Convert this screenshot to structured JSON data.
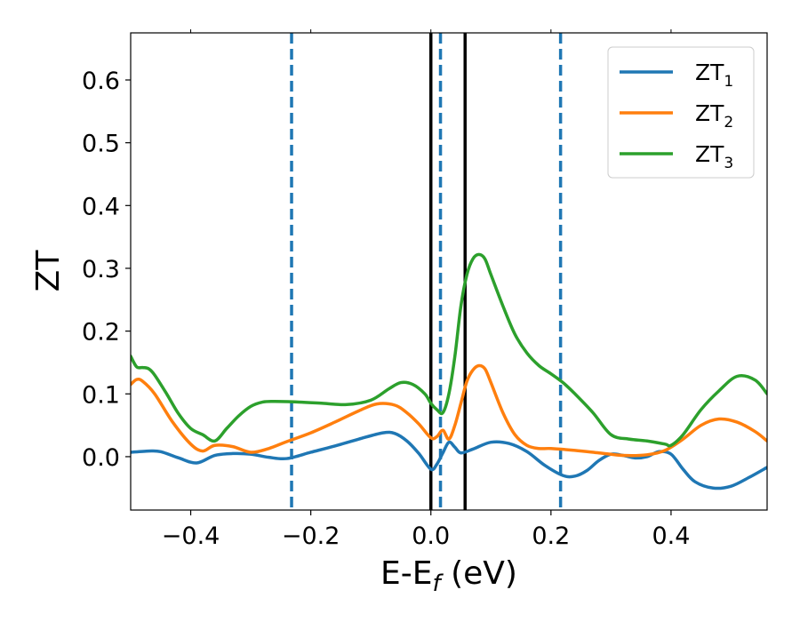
{
  "chart_data": {
    "type": "line",
    "xlabel_main": "E-E",
    "xlabel_sub": "f",
    "xlabel_unit": " (eV)",
    "ylabel": "ZT",
    "xlim": [
      -0.5,
      0.56
    ],
    "ylim": [
      -0.085,
      0.675
    ],
    "x_ticks": [
      -0.4,
      -0.2,
      0.0,
      0.2,
      0.4
    ],
    "x_tick_labels": [
      "−0.4",
      "−0.2",
      "0.0",
      "0.2",
      "0.4"
    ],
    "y_ticks": [
      0.0,
      0.1,
      0.2,
      0.3,
      0.4,
      0.5,
      0.6
    ],
    "y_tick_labels": [
      "0.0",
      "0.1",
      "0.2",
      "0.3",
      "0.4",
      "0.5",
      "0.6"
    ],
    "grid": false,
    "legend_position": "top-right",
    "colors": {
      "zt1": "#1f77b4",
      "zt2": "#ff7f0e",
      "zt3": "#2ca02c",
      "solid_vline": "#000000",
      "dashed_vline": "#1f77b4"
    },
    "vlines_solid": [
      0.0,
      0.057
    ],
    "vlines_dashed": [
      -0.232,
      0.016,
      0.216
    ],
    "series": [
      {
        "name_main": "ZT",
        "name_sub": "1",
        "color": "#1f77b4",
        "x": [
          -0.5,
          -0.47,
          -0.45,
          -0.42,
          -0.39,
          -0.36,
          -0.33,
          -0.3,
          -0.27,
          -0.24,
          -0.2,
          -0.16,
          -0.12,
          -0.08,
          -0.06,
          -0.04,
          -0.02,
          0.0,
          0.01,
          0.02,
          0.03,
          0.04,
          0.05,
          0.07,
          0.1,
          0.13,
          0.16,
          0.19,
          0.22,
          0.24,
          0.26,
          0.28,
          0.3,
          0.32,
          0.34,
          0.36,
          0.38,
          0.4,
          0.42,
          0.44,
          0.47,
          0.5,
          0.53,
          0.56
        ],
        "y": [
          0.007,
          0.009,
          0.008,
          -0.002,
          -0.01,
          0.002,
          0.005,
          0.004,
          -0.001,
          -0.003,
          0.007,
          0.017,
          0.028,
          0.038,
          0.037,
          0.025,
          0.005,
          -0.02,
          -0.012,
          0.006,
          0.023,
          0.015,
          0.006,
          0.012,
          0.023,
          0.021,
          0.008,
          -0.014,
          -0.03,
          -0.031,
          -0.022,
          -0.006,
          0.004,
          0.002,
          -0.002,
          0.0,
          0.008,
          0.004,
          -0.02,
          -0.04,
          -0.05,
          -0.047,
          -0.033,
          -0.017
        ]
      },
      {
        "name_main": "ZT",
        "name_sub": "2",
        "color": "#ff7f0e",
        "x": [
          -0.5,
          -0.49,
          -0.48,
          -0.46,
          -0.43,
          -0.4,
          -0.38,
          -0.36,
          -0.33,
          -0.3,
          -0.27,
          -0.24,
          -0.2,
          -0.16,
          -0.12,
          -0.09,
          -0.06,
          -0.04,
          -0.02,
          0.0,
          0.01,
          0.02,
          0.03,
          0.04,
          0.05,
          0.06,
          0.07,
          0.08,
          0.09,
          0.1,
          0.12,
          0.14,
          0.16,
          0.18,
          0.2,
          0.24,
          0.28,
          0.32,
          0.36,
          0.39,
          0.42,
          0.45,
          0.48,
          0.51,
          0.54,
          0.56
        ],
        "y": [
          0.115,
          0.123,
          0.12,
          0.1,
          0.055,
          0.02,
          0.009,
          0.018,
          0.016,
          0.007,
          0.013,
          0.024,
          0.038,
          0.055,
          0.073,
          0.084,
          0.082,
          0.07,
          0.052,
          0.03,
          0.032,
          0.042,
          0.028,
          0.05,
          0.085,
          0.12,
          0.138,
          0.145,
          0.14,
          0.118,
          0.07,
          0.035,
          0.018,
          0.013,
          0.013,
          0.01,
          0.006,
          0.002,
          0.003,
          0.01,
          0.028,
          0.05,
          0.06,
          0.055,
          0.04,
          0.025
        ]
      },
      {
        "name_main": "ZT",
        "name_sub": "3",
        "color": "#2ca02c",
        "x": [
          -0.5,
          -0.49,
          -0.48,
          -0.47,
          -0.46,
          -0.44,
          -0.42,
          -0.4,
          -0.38,
          -0.36,
          -0.34,
          -0.32,
          -0.3,
          -0.28,
          -0.26,
          -0.22,
          -0.18,
          -0.14,
          -0.1,
          -0.07,
          -0.05,
          -0.03,
          -0.01,
          0.0,
          0.01,
          0.02,
          0.03,
          0.04,
          0.05,
          0.06,
          0.07,
          0.08,
          0.09,
          0.1,
          0.12,
          0.14,
          0.16,
          0.18,
          0.2,
          0.22,
          0.24,
          0.27,
          0.3,
          0.33,
          0.36,
          0.39,
          0.4,
          0.42,
          0.45,
          0.48,
          0.51,
          0.54,
          0.56
        ],
        "y": [
          0.16,
          0.143,
          0.142,
          0.14,
          0.13,
          0.1,
          0.068,
          0.045,
          0.035,
          0.025,
          0.045,
          0.065,
          0.08,
          0.087,
          0.088,
          0.087,
          0.085,
          0.083,
          0.09,
          0.108,
          0.118,
          0.115,
          0.1,
          0.085,
          0.075,
          0.07,
          0.1,
          0.16,
          0.24,
          0.29,
          0.315,
          0.322,
          0.315,
          0.29,
          0.24,
          0.195,
          0.165,
          0.145,
          0.132,
          0.118,
          0.1,
          0.07,
          0.035,
          0.028,
          0.025,
          0.02,
          0.018,
          0.035,
          0.075,
          0.105,
          0.128,
          0.122,
          0.1
        ]
      }
    ]
  }
}
